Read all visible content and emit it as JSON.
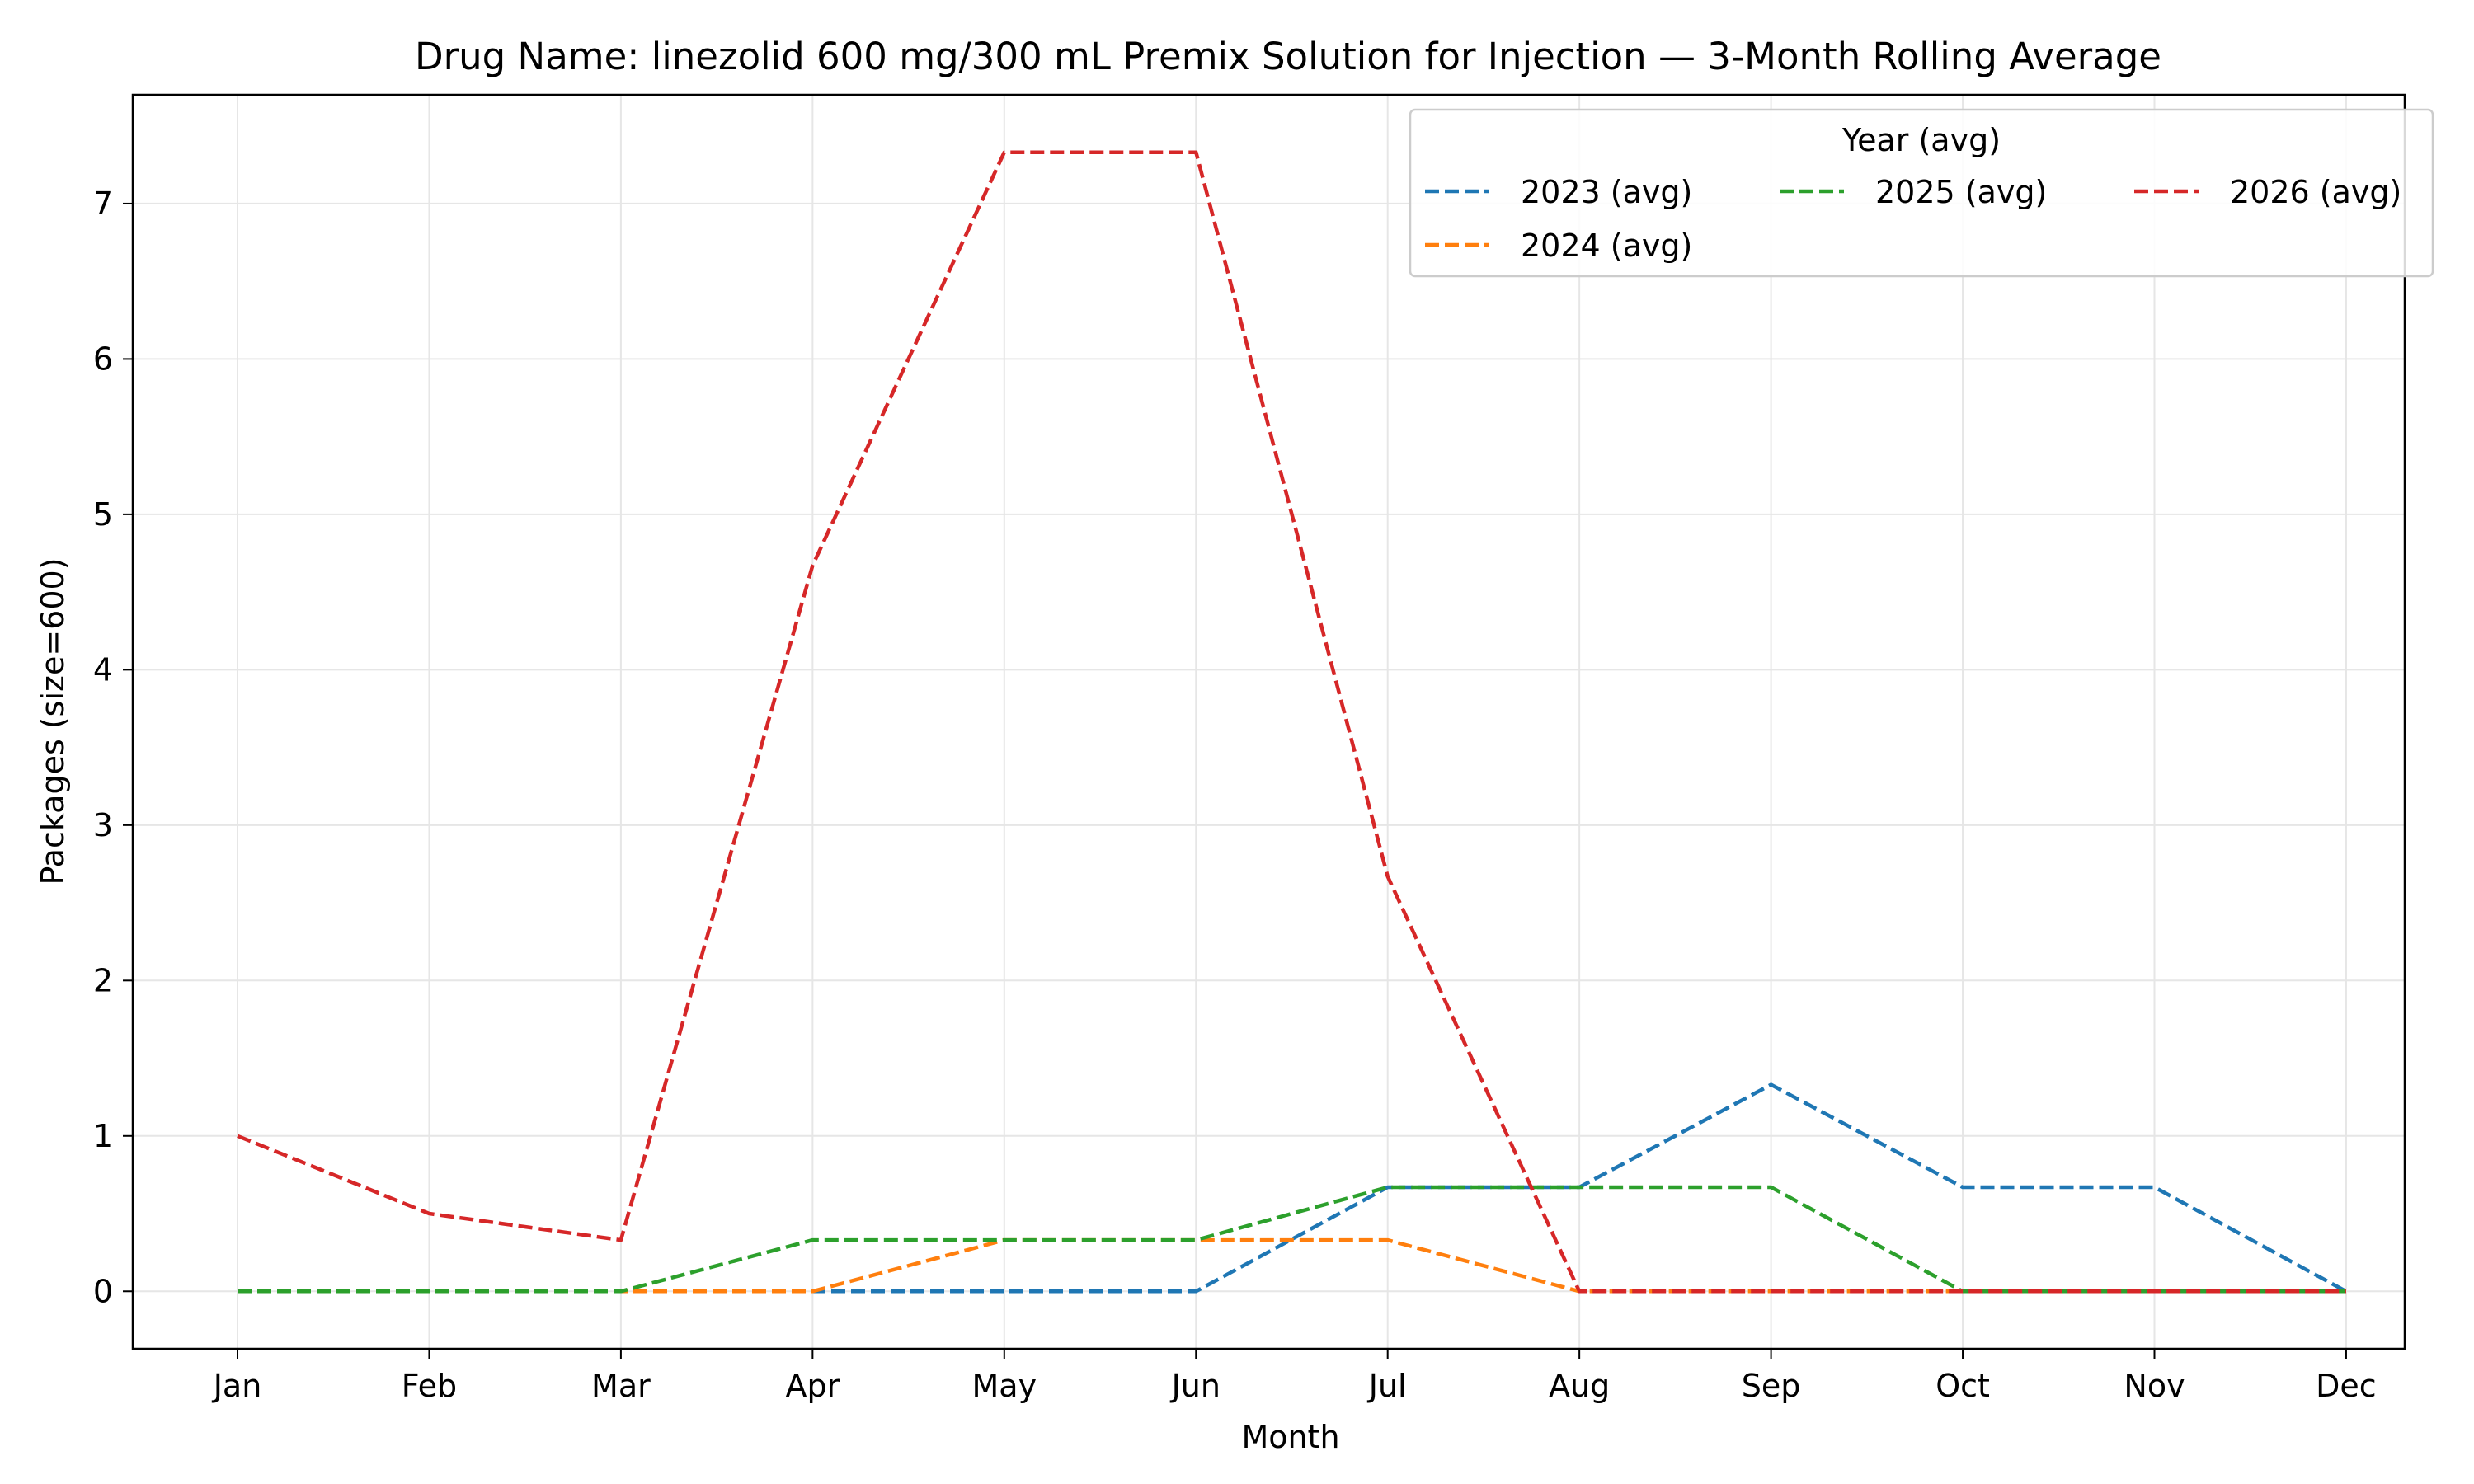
{
  "chart_data": {
    "type": "line",
    "title": "Drug Name: linezolid 600 mg/300 mL Premix Solution for Injection — 3-Month Rolling Average",
    "xlabel": "Month",
    "ylabel": "Packages (size=600)",
    "categories": [
      "Jan",
      "Feb",
      "Mar",
      "Apr",
      "May",
      "Jun",
      "Jul",
      "Aug",
      "Sep",
      "Oct",
      "Nov",
      "Dec"
    ],
    "ylim": [
      -0.37,
      7.7
    ],
    "yticks": [
      0,
      1,
      2,
      3,
      4,
      5,
      6,
      7
    ],
    "grid": true,
    "line_style": "dashed",
    "legend": {
      "title": "Year (avg)",
      "placement": "top-right"
    },
    "series": [
      {
        "name": "2023 (avg)",
        "color": "#1f77b4",
        "values": [
          0,
          0,
          0,
          0,
          0,
          0,
          0.67,
          0.67,
          1.33,
          0.67,
          0.67,
          0
        ]
      },
      {
        "name": "2024 (avg)",
        "color": "#ff7f0e",
        "values": [
          0,
          0,
          0,
          0,
          0.33,
          0.33,
          0.33,
          0,
          0,
          0,
          0,
          0
        ]
      },
      {
        "name": "2025 (avg)",
        "color": "#2ca02c",
        "values": [
          0,
          0,
          0,
          0.33,
          0.33,
          0.33,
          0.67,
          0.67,
          0.67,
          0,
          0,
          0
        ]
      },
      {
        "name": "2026 (avg)",
        "color": "#d62728",
        "values": [
          1,
          0.5,
          0.33,
          4.67,
          7.33,
          7.33,
          2.67,
          0,
          0,
          0,
          0,
          0
        ]
      }
    ]
  }
}
